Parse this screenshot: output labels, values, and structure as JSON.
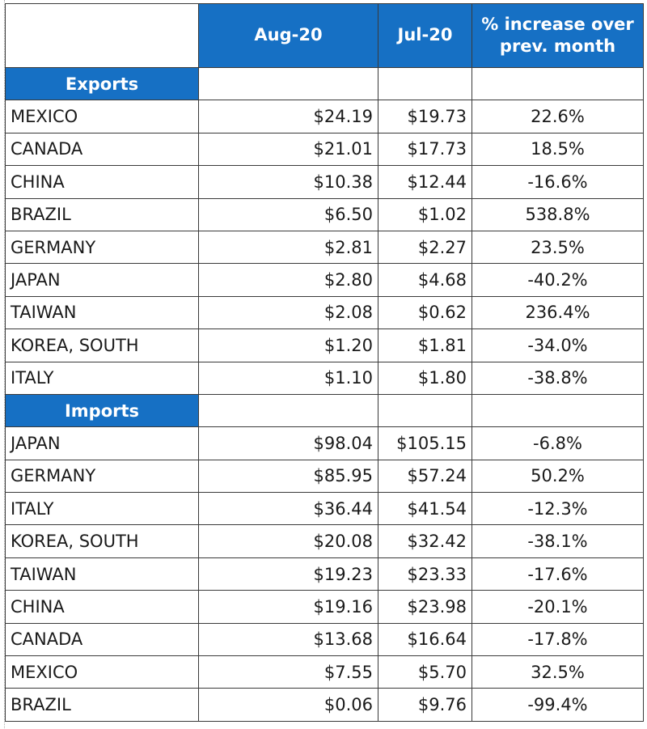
{
  "header": {
    "col1": "Aug-20",
    "col2": "Jul-20",
    "col3": "% increase over prev. month"
  },
  "exports": {
    "label": "Exports",
    "rows": [
      {
        "country": "MEXICO",
        "aug": "$24.19",
        "jul": "$19.73",
        "pct": "22.6%"
      },
      {
        "country": "CANADA",
        "aug": "$21.01",
        "jul": "$17.73",
        "pct": "18.5%"
      },
      {
        "country": "CHINA",
        "aug": "$10.38",
        "jul": "$12.44",
        "pct": "-16.6%"
      },
      {
        "country": "BRAZIL",
        "aug": "$6.50",
        "jul": "$1.02",
        "pct": "538.8%"
      },
      {
        "country": "GERMANY",
        "aug": "$2.81",
        "jul": "$2.27",
        "pct": "23.5%"
      },
      {
        "country": "JAPAN",
        "aug": "$2.80",
        "jul": "$4.68",
        "pct": "-40.2%"
      },
      {
        "country": "TAIWAN",
        "aug": "$2.08",
        "jul": "$0.62",
        "pct": "236.4%"
      },
      {
        "country": "KOREA, SOUTH",
        "aug": "$1.20",
        "jul": "$1.81",
        "pct": "-34.0%"
      },
      {
        "country": "ITALY",
        "aug": "$1.10",
        "jul": "$1.80",
        "pct": "-38.8%"
      }
    ]
  },
  "imports": {
    "label": "Imports",
    "rows": [
      {
        "country": "JAPAN",
        "aug": "$98.04",
        "jul": "$105.15",
        "pct": "-6.8%"
      },
      {
        "country": "GERMANY",
        "aug": "$85.95",
        "jul": "$57.24",
        "pct": "50.2%"
      },
      {
        "country": "ITALY",
        "aug": "$36.44",
        "jul": "$41.54",
        "pct": "-12.3%"
      },
      {
        "country": "KOREA, SOUTH",
        "aug": "$20.08",
        "jul": "$32.42",
        "pct": "-38.1%"
      },
      {
        "country": "TAIWAN",
        "aug": "$19.23",
        "jul": "$23.33",
        "pct": "-17.6%"
      },
      {
        "country": "CHINA",
        "aug": "$19.16",
        "jul": "$23.98",
        "pct": "-20.1%"
      },
      {
        "country": "CANADA",
        "aug": "$13.68",
        "jul": "$16.64",
        "pct": "-17.8%"
      },
      {
        "country": "MEXICO",
        "aug": "$7.55",
        "jul": "$5.70",
        "pct": "32.5%"
      },
      {
        "country": "BRAZIL",
        "aug": "$0.06",
        "jul": "$9.76",
        "pct": "-99.4%"
      }
    ]
  },
  "colors": {
    "header_blue": "#1670c4",
    "header_text": "#ffffff",
    "grid_line": "#3a3a3a"
  }
}
